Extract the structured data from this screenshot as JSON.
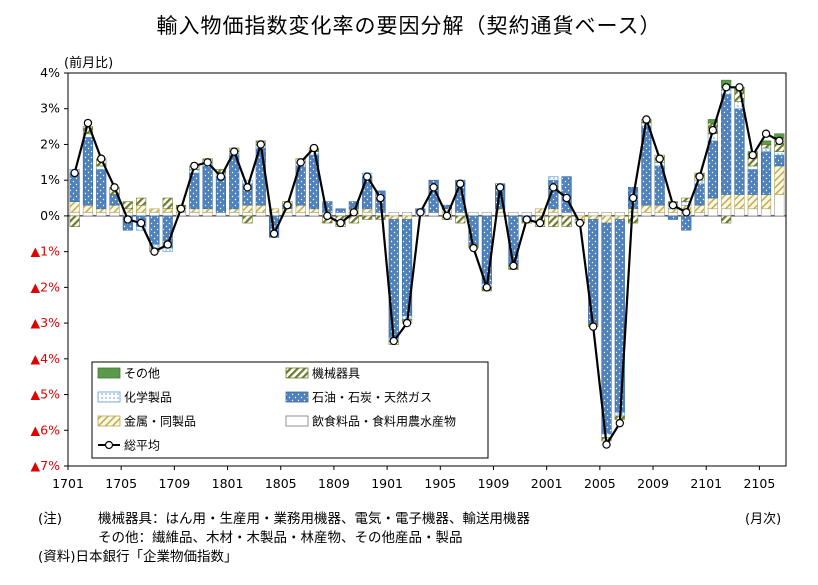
{
  "title": "輸入物価指数変化率の要因分解（契約通貨ベース）",
  "unit_label": "(前月比)",
  "x_unit_label": "(月次)",
  "notes": {
    "note_label": "(注)",
    "note_line1": "機械器具：はん用・生産用・業務用機器、電気・電子機器、輸送用機器",
    "note_line2": "その他：繊維品、木材・木製品・林産物、その他産品・製品",
    "source_label": "(資料)",
    "source_text": "日本銀行「企業物価指数」"
  },
  "colors": {
    "other": "#5a9a4a",
    "machinery": "#7a8c3a",
    "chemical": "#d8ecf8",
    "oil": "#4f81bd",
    "metal": "#e8e0a0",
    "food": "#ffffff",
    "total_line": "#000000",
    "negative_tick": "#e00000"
  },
  "chart_data": {
    "type": "bar",
    "stacked": true,
    "ylim": [
      -7,
      4
    ],
    "y_ticks": [
      4,
      3,
      2,
      1,
      0,
      -1,
      -2,
      -3,
      -4,
      -5,
      -6,
      -7
    ],
    "y_tick_labels": [
      "4%",
      "3%",
      "2%",
      "1%",
      "0%",
      "▲1%",
      "▲2%",
      "▲3%",
      "▲4%",
      "▲5%",
      "▲6%",
      "▲7%"
    ],
    "x_tick_labels": [
      "1701",
      "1705",
      "1709",
      "1801",
      "1805",
      "1809",
      "1901",
      "1905",
      "1909",
      "2001",
      "2005",
      "2009",
      "2101",
      "2105"
    ],
    "legend": [
      "その他",
      "機械器具",
      "化学製品",
      "石油・石炭・天然ガス",
      "金属・同製品",
      "飲食料品・食料用農水産物",
      "総平均"
    ],
    "total": [
      1.2,
      2.6,
      1.6,
      0.8,
      -0.1,
      -0.2,
      -1.0,
      -0.8,
      0.2,
      1.4,
      1.5,
      1.1,
      1.8,
      0.8,
      2.0,
      -0.5,
      0.3,
      1.5,
      1.9,
      0.0,
      -0.2,
      0.1,
      1.1,
      0.5,
      -3.5,
      -3.0,
      0.1,
      0.8,
      0.0,
      0.9,
      -0.9,
      -2.0,
      0.8,
      -1.4,
      -0.1,
      -0.2,
      0.8,
      0.5,
      -0.2,
      -3.1,
      -6.4,
      -5.8,
      0.5,
      2.7,
      1.6,
      0.3,
      0.1,
      1.1,
      2.4,
      3.6,
      3.6,
      1.7,
      2.3,
      2.1
    ],
    "series": [
      {
        "name": "その他",
        "values": [
          0.0,
          0.0,
          0.0,
          0.0,
          0.0,
          0.0,
          0.0,
          0.0,
          0.0,
          0.0,
          0.0,
          0.0,
          0.0,
          0.0,
          0.0,
          0.0,
          0.0,
          0.0,
          0.0,
          0.0,
          0.0,
          0.0,
          0.0,
          0.0,
          0.0,
          0.0,
          0.0,
          0.0,
          0.0,
          0.0,
          0.0,
          0.0,
          0.0,
          0.0,
          0.0,
          0.0,
          0.0,
          0.0,
          0.0,
          0.0,
          0.0,
          0.0,
          0.0,
          0.0,
          0.0,
          0.0,
          0.0,
          0.0,
          0.1,
          0.2,
          0.1,
          0.1,
          0.1,
          0.1
        ]
      },
      {
        "name": "機械器具",
        "values": [
          -0.3,
          0.2,
          0.2,
          0.2,
          0.2,
          0.2,
          -0.1,
          0.3,
          0.1,
          0.1,
          0.1,
          0.1,
          0.1,
          -0.2,
          0.1,
          0.0,
          0.1,
          0.1,
          0.1,
          -0.2,
          -0.3,
          -0.2,
          -0.1,
          -0.1,
          -0.1,
          -0.1,
          0.0,
          0.0,
          -0.1,
          -0.2,
          -0.1,
          -0.1,
          0.0,
          -0.1,
          -0.1,
          -0.3,
          -0.3,
          -0.3,
          -0.1,
          -0.1,
          -0.1,
          -0.1,
          -0.2,
          0.1,
          0.2,
          0.1,
          0.1,
          0.2,
          0.3,
          -0.2,
          0.3,
          0.3,
          0.1,
          0.4
        ]
      },
      {
        "name": "化学製品",
        "values": [
          0.1,
          0.1,
          0.1,
          0.0,
          0.0,
          -0.1,
          -0.1,
          -0.1,
          0.0,
          0.1,
          0.1,
          0.1,
          0.1,
          0.1,
          0.1,
          0.0,
          0.0,
          0.1,
          0.1,
          0.0,
          0.0,
          0.0,
          0.1,
          0.0,
          -0.1,
          -0.1,
          0.0,
          0.0,
          0.0,
          0.0,
          0.0,
          -0.1,
          0.0,
          0.0,
          0.0,
          0.0,
          0.1,
          0.0,
          0.0,
          0.0,
          -0.1,
          -0.1,
          0.0,
          0.1,
          0.1,
          0.1,
          0.1,
          0.1,
          0.2,
          0.2,
          0.2,
          0.1,
          0.1,
          0.1
        ]
      },
      {
        "name": "石油・石炭・天然ガス",
        "values": [
          0.8,
          1.9,
          1.1,
          0.3,
          -0.4,
          -0.3,
          -0.8,
          -0.9,
          0.0,
          1.0,
          1.2,
          1.0,
          1.5,
          0.6,
          1.6,
          -0.6,
          0.1,
          1.1,
          1.5,
          0.3,
          0.1,
          0.2,
          0.9,
          0.6,
          -3.3,
          -2.7,
          0.1,
          0.9,
          0.1,
          0.9,
          -0.8,
          -1.9,
          0.7,
          -1.4,
          -0.1,
          0.0,
          0.8,
          1.0,
          0.0,
          -2.9,
          -5.9,
          -5.4,
          0.6,
          2.2,
          1.1,
          -0.1,
          -0.4,
          0.6,
          1.6,
          2.8,
          2.4,
          0.7,
          1.2,
          0.3
        ]
      },
      {
        "name": "金属・同製品",
        "values": [
          0.3,
          0.2,
          0.1,
          0.2,
          0.1,
          0.2,
          0.1,
          0.1,
          0.1,
          0.1,
          0.1,
          0.0,
          0.1,
          0.2,
          0.2,
          0.1,
          0.1,
          0.2,
          0.1,
          0.0,
          0.0,
          0.1,
          0.1,
          0.0,
          -0.1,
          -0.1,
          0.0,
          0.0,
          0.1,
          0.0,
          0.0,
          0.0,
          0.1,
          0.0,
          0.0,
          0.1,
          0.1,
          0.0,
          -0.1,
          -0.1,
          -0.2,
          -0.1,
          0.1,
          0.2,
          0.2,
          0.1,
          0.2,
          0.2,
          0.3,
          0.4,
          0.4,
          0.4,
          0.4,
          0.8
        ]
      },
      {
        "name": "飲食料品・食料用農水産物",
        "values": [
          0.1,
          0.1,
          0.1,
          0.1,
          0.1,
          0.1,
          0.1,
          0.1,
          0.1,
          0.1,
          0.1,
          0.1,
          0.1,
          0.1,
          0.1,
          0.1,
          0.1,
          0.1,
          0.1,
          0.1,
          0.1,
          0.1,
          0.1,
          0.1,
          0.1,
          0.1,
          0.1,
          0.1,
          0.1,
          0.1,
          0.1,
          0.1,
          0.1,
          0.1,
          0.1,
          0.1,
          0.1,
          0.1,
          0.1,
          0.1,
          0.1,
          0.1,
          0.1,
          0.1,
          0.1,
          0.1,
          0.1,
          0.1,
          0.2,
          0.2,
          0.2,
          0.2,
          0.2,
          0.6
        ]
      }
    ]
  }
}
